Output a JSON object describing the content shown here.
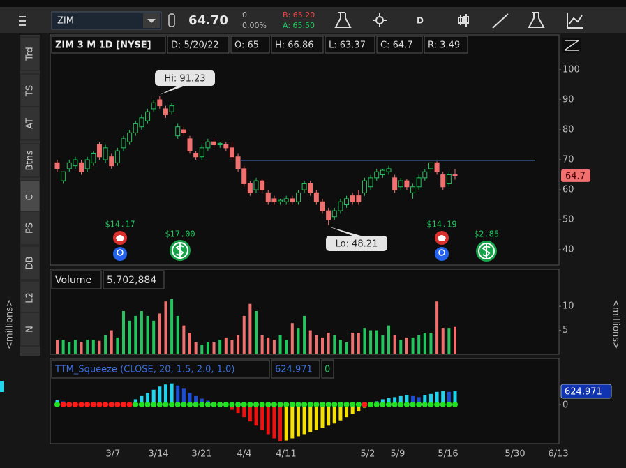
{
  "toolbar": {
    "symbol": "ZIM",
    "last": "64.70",
    "change": "0",
    "change_pct": "0.00%",
    "bid": "B: 65.20",
    "ask": "A: 65.50",
    "period": "D"
  },
  "sidebar": [
    "Trd",
    "TS",
    "AT",
    "Btns",
    "C",
    "PS",
    "DB",
    "L2",
    "N"
  ],
  "axis_unit": "<millions>",
  "chart_data": {
    "type": "candlestick",
    "title": "ZIM 3 M 1D [NYSE]",
    "info": [
      "D: 5/20/22",
      "O: 65",
      "H: 66.86",
      "L: 63.37",
      "C: 64.7",
      "R: 3.49"
    ],
    "up_color": "#22c55e",
    "down_color": "#f07070",
    "candles": [
      [
        69,
        70,
        66,
        67
      ],
      [
        63,
        66,
        62,
        66
      ],
      [
        67,
        70,
        66,
        69
      ],
      [
        68,
        71,
        67,
        70
      ],
      [
        69,
        70,
        65,
        66
      ],
      [
        67,
        71,
        66,
        70
      ],
      [
        69,
        73,
        68,
        72
      ],
      [
        75,
        76,
        70,
        71
      ],
      [
        70,
        75,
        69,
        74
      ],
      [
        71,
        72,
        67,
        68
      ],
      [
        69,
        74,
        68,
        73
      ],
      [
        74,
        78,
        73,
        77
      ],
      [
        76,
        80,
        75,
        79
      ],
      [
        79,
        83,
        78,
        82
      ],
      [
        81,
        85,
        80,
        84
      ],
      [
        83,
        87,
        82,
        86
      ],
      [
        87,
        90,
        86,
        89
      ],
      [
        90,
        91.23,
        87,
        88
      ],
      [
        87,
        88,
        84,
        85
      ],
      [
        86,
        89,
        85,
        88
      ],
      [
        78,
        82,
        77,
        81
      ],
      [
        80,
        81,
        78,
        79
      ],
      [
        77,
        78,
        72,
        73
      ],
      [
        72,
        73,
        70,
        71
      ],
      [
        71,
        75,
        70,
        74
      ],
      [
        74,
        77,
        73,
        76
      ],
      [
        76,
        77,
        74,
        75
      ],
      [
        75,
        76,
        74,
        75.5
      ],
      [
        75,
        76,
        73,
        74
      ],
      [
        74,
        76,
        70,
        71
      ],
      [
        71,
        72,
        66,
        67
      ],
      [
        67,
        68,
        61,
        62
      ],
      [
        62,
        63,
        58,
        59
      ],
      [
        60,
        64,
        59,
        63
      ],
      [
        63,
        63.5,
        59,
        60
      ],
      [
        59,
        60,
        55,
        56
      ],
      [
        57,
        58,
        55,
        56
      ],
      [
        56,
        57,
        55,
        56.5
      ],
      [
        56,
        58,
        55,
        57
      ],
      [
        57,
        58,
        55,
        56
      ],
      [
        56,
        60,
        55,
        59
      ],
      [
        60,
        63,
        59,
        62
      ],
      [
        62,
        63,
        58,
        59
      ],
      [
        59,
        60,
        55,
        56
      ],
      [
        56,
        57,
        52,
        53
      ],
      [
        53,
        54,
        48.21,
        50
      ],
      [
        51,
        54,
        50,
        53
      ],
      [
        53,
        57,
        52,
        56
      ],
      [
        55,
        58,
        54,
        57
      ],
      [
        58,
        59,
        55,
        56
      ],
      [
        58,
        60,
        55,
        56
      ],
      [
        59,
        64,
        58,
        63
      ],
      [
        61,
        65,
        60,
        64
      ],
      [
        64,
        67,
        63,
        66
      ],
      [
        65,
        67,
        64,
        66.5
      ],
      [
        66,
        68,
        65,
        67
      ],
      [
        64,
        65,
        59,
        60
      ],
      [
        61,
        64,
        60,
        63
      ],
      [
        63,
        63.5,
        60,
        61
      ],
      [
        59,
        62,
        57,
        61
      ],
      [
        61,
        65,
        60,
        64
      ],
      [
        64,
        67,
        63,
        66
      ],
      [
        67,
        69,
        66,
        69
      ],
      [
        69,
        69.5,
        65,
        66
      ],
      [
        65,
        66,
        60,
        61
      ],
      [
        62,
        66,
        61,
        65
      ],
      [
        65,
        66.86,
        63.37,
        64.7
      ]
    ],
    "ylim": [
      34.9,
      104.65
    ],
    "yticks": [
      40,
      50,
      60,
      70,
      80,
      90,
      100
    ],
    "xticks": [
      "3/7",
      "3/14",
      "3/21",
      "4/4",
      "4/11",
      "5/2",
      "5/9",
      "5/16",
      "5/30",
      "6/13"
    ],
    "level": 69.8,
    "level_color": "#4a6fc8",
    "price_label": "64.7",
    "annotations": [
      "Hi: 91.23",
      "Lo: 48.21"
    ],
    "events": [
      "$14.17",
      "$17.00",
      "$14.19",
      "$2.85"
    ],
    "volume": {
      "title": "Volume",
      "value_label": "5,702,884",
      "values": [
        3,
        3,
        2.5,
        3,
        2.5,
        3,
        3,
        2.8,
        4,
        5,
        3.5,
        9,
        7,
        8,
        9,
        8,
        7,
        8.5,
        11,
        11.5,
        8,
        6,
        4.5,
        2.5,
        2,
        2.5,
        2.5,
        3,
        3.5,
        3,
        4,
        8,
        10.5,
        9,
        4,
        3.5,
        3,
        4,
        3,
        6.5,
        5.5,
        8,
        5,
        4,
        3.5,
        4.5,
        4,
        3,
        2.5,
        4.5,
        4.5,
        5.5,
        5,
        5,
        4,
        6,
        4,
        3,
        3.5,
        3.5,
        4,
        4.5,
        4.5,
        11,
        5.5,
        5.5,
        5.702884
      ],
      "ylim": [
        0,
        13.5
      ],
      "yticks": [
        5,
        10
      ]
    },
    "squeeze": {
      "title": "TTM_Squeeze (CLOSE, 20, 1.5, 2.0, 1.0)",
      "value_label": "624.971",
      "values": [
        200,
        150,
        60,
        40,
        30,
        20,
        20,
        30,
        40,
        50,
        60,
        80,
        120,
        250,
        400,
        550,
        700,
        850,
        950,
        1000,
        900,
        750,
        550,
        400,
        280,
        180,
        100,
        40,
        -100,
        -250,
        -400,
        -600,
        -800,
        -1000,
        -1200,
        -1400,
        -1600,
        -1750,
        -1700,
        -1600,
        -1500,
        -1400,
        -1300,
        -1200,
        -1100,
        -1000,
        -900,
        -750,
        -600,
        -450,
        -300,
        -150,
        50,
        150,
        250,
        300,
        350,
        400,
        450,
        400,
        350,
        450,
        500,
        600,
        650,
        600,
        624.971
      ],
      "squeeze_on": [
        false,
        true,
        true,
        true,
        true,
        true,
        true,
        true,
        true,
        true,
        true,
        true,
        true,
        false,
        false,
        false,
        false,
        false,
        false,
        false,
        false,
        false,
        false,
        false,
        false,
        false,
        false,
        false,
        false,
        false,
        false,
        false,
        false,
        false,
        false,
        false,
        false,
        false,
        false,
        false,
        false,
        false,
        false,
        false,
        false,
        false,
        false,
        false,
        false,
        false,
        false,
        true,
        false,
        false,
        false,
        false,
        false,
        false,
        false,
        false,
        false,
        false,
        false,
        false,
        false,
        false,
        false
      ],
      "ylim": [
        -1848,
        1320
      ],
      "yticks": [
        0
      ],
      "colors": {
        "up_pos": "#22d3ee",
        "down_pos": "#1d4ed8",
        "down_neg": "#ef1010",
        "up_neg": "#f5e000",
        "dot_on": "#ff1a1a",
        "dot_off": "#22e022"
      }
    }
  }
}
